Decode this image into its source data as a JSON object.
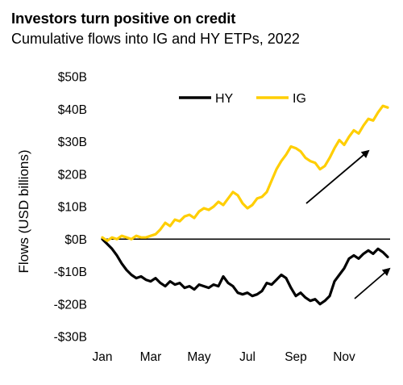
{
  "header": {
    "title": "Investors turn positive on credit",
    "subtitle": "Cumulative flows into IG and HY ETPs, 2022"
  },
  "chart_data": {
    "type": "line",
    "title": "Investors turn positive on credit",
    "subtitle": "Cumulative flows into IG and HY ETPs, 2022",
    "xlabel": "",
    "ylabel": "Flows (USD billions)",
    "ylim": [
      -30,
      50
    ],
    "y_ticks": [
      50,
      40,
      30,
      20,
      10,
      0,
      -10,
      -20,
      -30
    ],
    "y_tick_labels": [
      "$50B",
      "$40B",
      "$30B",
      "$20B",
      "$10B",
      "$0B",
      "-$10B",
      "-$20B",
      "-$30B"
    ],
    "x_tick_labels": [
      "Jan",
      "Mar",
      "May",
      "Jul",
      "Sep",
      "Nov"
    ],
    "x_tick_positions": [
      1,
      3,
      5,
      7,
      9,
      11
    ],
    "xlim": [
      1,
      12.9
    ],
    "legend_position": "top-center",
    "series": [
      {
        "name": "HY",
        "color": "#000000",
        "x": [
          1.0,
          1.2,
          1.4,
          1.6,
          1.8,
          2.0,
          2.2,
          2.4,
          2.6,
          2.8,
          3.0,
          3.2,
          3.4,
          3.6,
          3.8,
          4.0,
          4.2,
          4.4,
          4.6,
          4.8,
          5.0,
          5.2,
          5.4,
          5.6,
          5.8,
          6.0,
          6.2,
          6.4,
          6.6,
          6.8,
          7.0,
          7.2,
          7.4,
          7.6,
          7.8,
          8.0,
          8.2,
          8.4,
          8.6,
          8.8,
          9.0,
          9.2,
          9.4,
          9.6,
          9.8,
          10.0,
          10.2,
          10.4,
          10.6,
          10.8,
          11.0,
          11.2,
          11.4,
          11.6,
          11.8,
          12.0,
          12.2,
          12.4,
          12.6,
          12.8
        ],
        "values": [
          0.0,
          -1.5,
          -3.0,
          -5.0,
          -7.5,
          -9.5,
          -11.0,
          -12.0,
          -11.5,
          -12.5,
          -13.0,
          -12.0,
          -13.5,
          -14.5,
          -13.0,
          -14.0,
          -13.5,
          -15.0,
          -14.5,
          -15.5,
          -14.0,
          -14.5,
          -15.0,
          -14.0,
          -14.5,
          -11.5,
          -13.5,
          -14.5,
          -16.5,
          -17.0,
          -16.5,
          -17.5,
          -17.0,
          -16.0,
          -13.5,
          -14.0,
          -12.5,
          -11.0,
          -12.0,
          -15.0,
          -17.5,
          -16.5,
          -18.0,
          -19.0,
          -18.5,
          -20.0,
          -19.0,
          -17.5,
          -13.0,
          -11.0,
          -9.0,
          -6.0,
          -5.0,
          -6.0,
          -4.5,
          -3.5,
          -4.5,
          -3.0,
          -4.0,
          -5.5
        ]
      },
      {
        "name": "IG",
        "color": "#FFCE00",
        "x": [
          1.0,
          1.2,
          1.4,
          1.6,
          1.8,
          2.0,
          2.2,
          2.4,
          2.6,
          2.8,
          3.0,
          3.2,
          3.4,
          3.6,
          3.8,
          4.0,
          4.2,
          4.4,
          4.6,
          4.8,
          5.0,
          5.2,
          5.4,
          5.6,
          5.8,
          6.0,
          6.2,
          6.4,
          6.6,
          6.8,
          7.0,
          7.2,
          7.4,
          7.6,
          7.8,
          8.0,
          8.2,
          8.4,
          8.6,
          8.8,
          9.0,
          9.2,
          9.4,
          9.6,
          9.8,
          10.0,
          10.2,
          10.4,
          10.6,
          10.8,
          11.0,
          11.2,
          11.4,
          11.6,
          11.8,
          12.0,
          12.2,
          12.4,
          12.6,
          12.8
        ],
        "values": [
          0.5,
          -0.5,
          0.5,
          0.0,
          1.0,
          0.5,
          0.0,
          1.0,
          0.5,
          0.5,
          1.0,
          1.5,
          3.0,
          5.0,
          4.0,
          6.0,
          5.5,
          7.0,
          7.5,
          6.5,
          8.5,
          9.5,
          9.0,
          10.0,
          11.5,
          10.5,
          12.5,
          14.5,
          13.5,
          11.0,
          9.5,
          10.5,
          12.5,
          13.0,
          14.5,
          18.0,
          21.5,
          24.0,
          26.0,
          28.5,
          28.0,
          27.0,
          25.0,
          24.0,
          23.5,
          21.5,
          22.5,
          25.0,
          28.0,
          30.5,
          29.0,
          31.5,
          33.5,
          32.5,
          35.0,
          37.0,
          36.5,
          39.0,
          41.0,
          40.5
        ]
      }
    ],
    "annotations": [
      "up-arrow-ig",
      "up-arrow-hy"
    ]
  }
}
